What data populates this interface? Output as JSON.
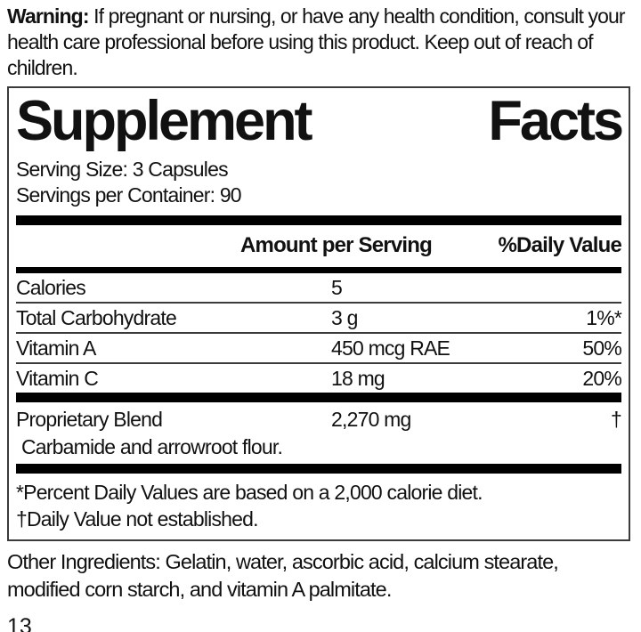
{
  "warning": {
    "label": "Warning:",
    "text": "If pregnant or nursing, or have any health condition, consult your health care professional before using this product. Keep out of reach of children."
  },
  "panel": {
    "title_words": [
      "Supplement",
      "Facts"
    ],
    "serving_size": "Serving Size: 3 Capsules",
    "servings_per_container": "Servings per Container: 90",
    "columns": {
      "amount": "Amount per Serving",
      "daily_value": "%Daily Value"
    },
    "rows": [
      {
        "name": "Calories",
        "amount": "5",
        "daily_value": ""
      },
      {
        "name": "Total Carbohydrate",
        "amount": "3 g",
        "daily_value": "1%*"
      },
      {
        "name": "Vitamin A",
        "amount": "450 mcg RAE",
        "daily_value": "50%"
      },
      {
        "name": "Vitamin C",
        "amount": "18 mg",
        "daily_value": "20%"
      }
    ],
    "proprietary_blend": {
      "name": "Proprietary Blend",
      "amount": "2,270 mg",
      "daily_value": "†",
      "description": "Carbamide and arrowroot flour."
    },
    "footnotes": [
      "*Percent Daily Values are based on a 2,000 calorie diet.",
      "†Daily Value not established."
    ]
  },
  "other_ingredients": "Other Ingredients: Gelatin, water, ascorbic acid, calcium stearate, modified corn starch, and vitamin A palmitate.",
  "page_number": "13",
  "colors": {
    "text": "#111111",
    "bar": "#000000",
    "border": "#3b3b3b",
    "background": "#ffffff"
  }
}
